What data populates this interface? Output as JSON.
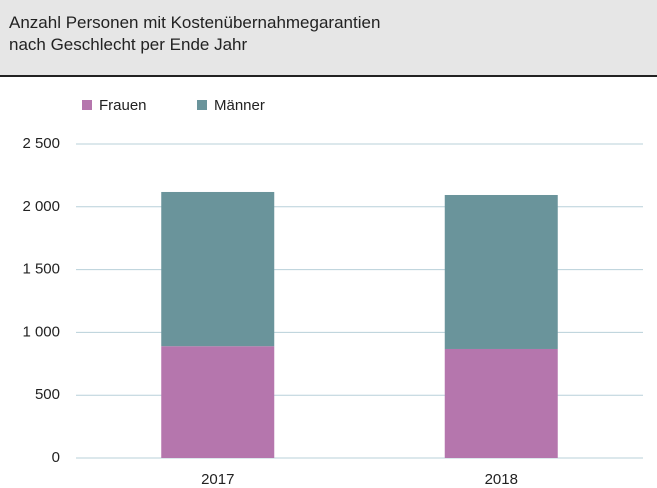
{
  "chart_data": {
    "type": "stacked_bar",
    "title": [
      "Anzahl Personen mit Kostenübernahmegarantien",
      "nach Geschlecht per Ende Jahr"
    ],
    "categories": [
      "2017",
      "2018"
    ],
    "series": [
      {
        "name": "Frauen",
        "color": "#b576ad",
        "values": [
          890,
          868
        ]
      },
      {
        "name": "Männer",
        "color": "#6a949b",
        "values": [
          1228,
          1226
        ]
      }
    ],
    "ylim": [
      0,
      2500
    ],
    "yticks": [
      0,
      500,
      {
        "value": 1000,
        "label": "1 000"
      },
      {
        "value": 1500,
        "label": "1 500"
      },
      {
        "value": 2000,
        "label": "2 000"
      },
      {
        "value": 2500,
        "label": "2 500"
      }
    ],
    "grid": true,
    "legend": "top-left"
  }
}
